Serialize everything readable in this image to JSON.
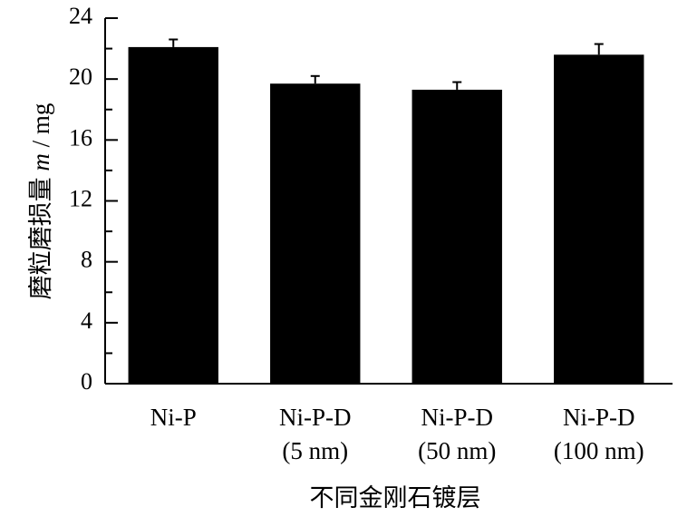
{
  "chart_data": {
    "type": "bar",
    "categories": [
      [
        "Ni-P"
      ],
      [
        "Ni-P-D",
        "(5 nm)"
      ],
      [
        "Ni-P-D",
        "(50 nm)"
      ],
      [
        "Ni-P-D",
        "(100 nm)"
      ]
    ],
    "values": [
      22.1,
      19.7,
      19.3,
      21.6
    ],
    "errors": [
      0.5,
      0.5,
      0.5,
      0.7
    ],
    "bar_color": "#000000",
    "xlabel": "不同金刚石镀层",
    "ylabel": {
      "text": "磨粒磨损量 ",
      "symbol": "m",
      "unit": " / mg"
    },
    "ylim": [
      0,
      24
    ],
    "yticks": [
      0,
      4,
      8,
      12,
      16,
      20,
      24
    ],
    "minor_ticks": true,
    "grid": false,
    "legend": "none"
  }
}
